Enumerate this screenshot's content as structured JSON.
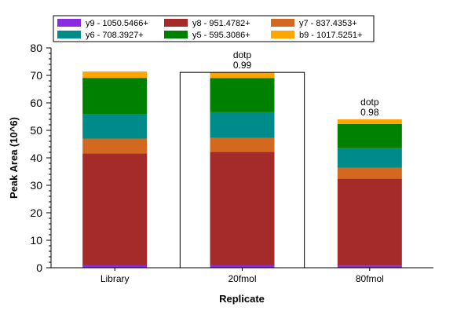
{
  "chart_data": {
    "type": "bar",
    "stacked": true,
    "xlabel": "Replicate",
    "ylabel": "Peak Area (10^6)",
    "ylim": [
      0,
      80
    ],
    "yticks": [
      0,
      10,
      20,
      30,
      40,
      50,
      60,
      70,
      80
    ],
    "categories": [
      "Library",
      "20fmol",
      "80fmol"
    ],
    "selected_category": "20fmol",
    "grid": false,
    "legend_position": "top",
    "series": [
      {
        "name": "y9 - 1050.5466+",
        "color": "#8a2be2",
        "values": [
          1.0,
          1.0,
          0.8
        ]
      },
      {
        "name": "y8 - 951.4782+",
        "color": "#a52a2a",
        "values": [
          40.6,
          41.2,
          31.6
        ]
      },
      {
        "name": "y7 - 837.4353+",
        "color": "#d2691e",
        "values": [
          5.4,
          5.0,
          4.0
        ]
      },
      {
        "name": "y6 - 708.3927+",
        "color": "#008b8b",
        "values": [
          9.0,
          9.4,
          7.1
        ]
      },
      {
        "name": "y5 - 595.3086+",
        "color": "#008000",
        "values": [
          13.1,
          12.4,
          8.8
        ]
      },
      {
        "name": "b9 - 1017.5251+",
        "color": "#ffa500",
        "values": [
          2.3,
          2.1,
          1.7
        ]
      }
    ],
    "legend_order": [
      0,
      1,
      2,
      3,
      4,
      5
    ],
    "annotations": [
      {
        "category": "20fmol",
        "lines": [
          "dotp",
          "0.99"
        ]
      },
      {
        "category": "80fmol",
        "lines": [
          "dotp",
          "0.98"
        ]
      }
    ]
  }
}
